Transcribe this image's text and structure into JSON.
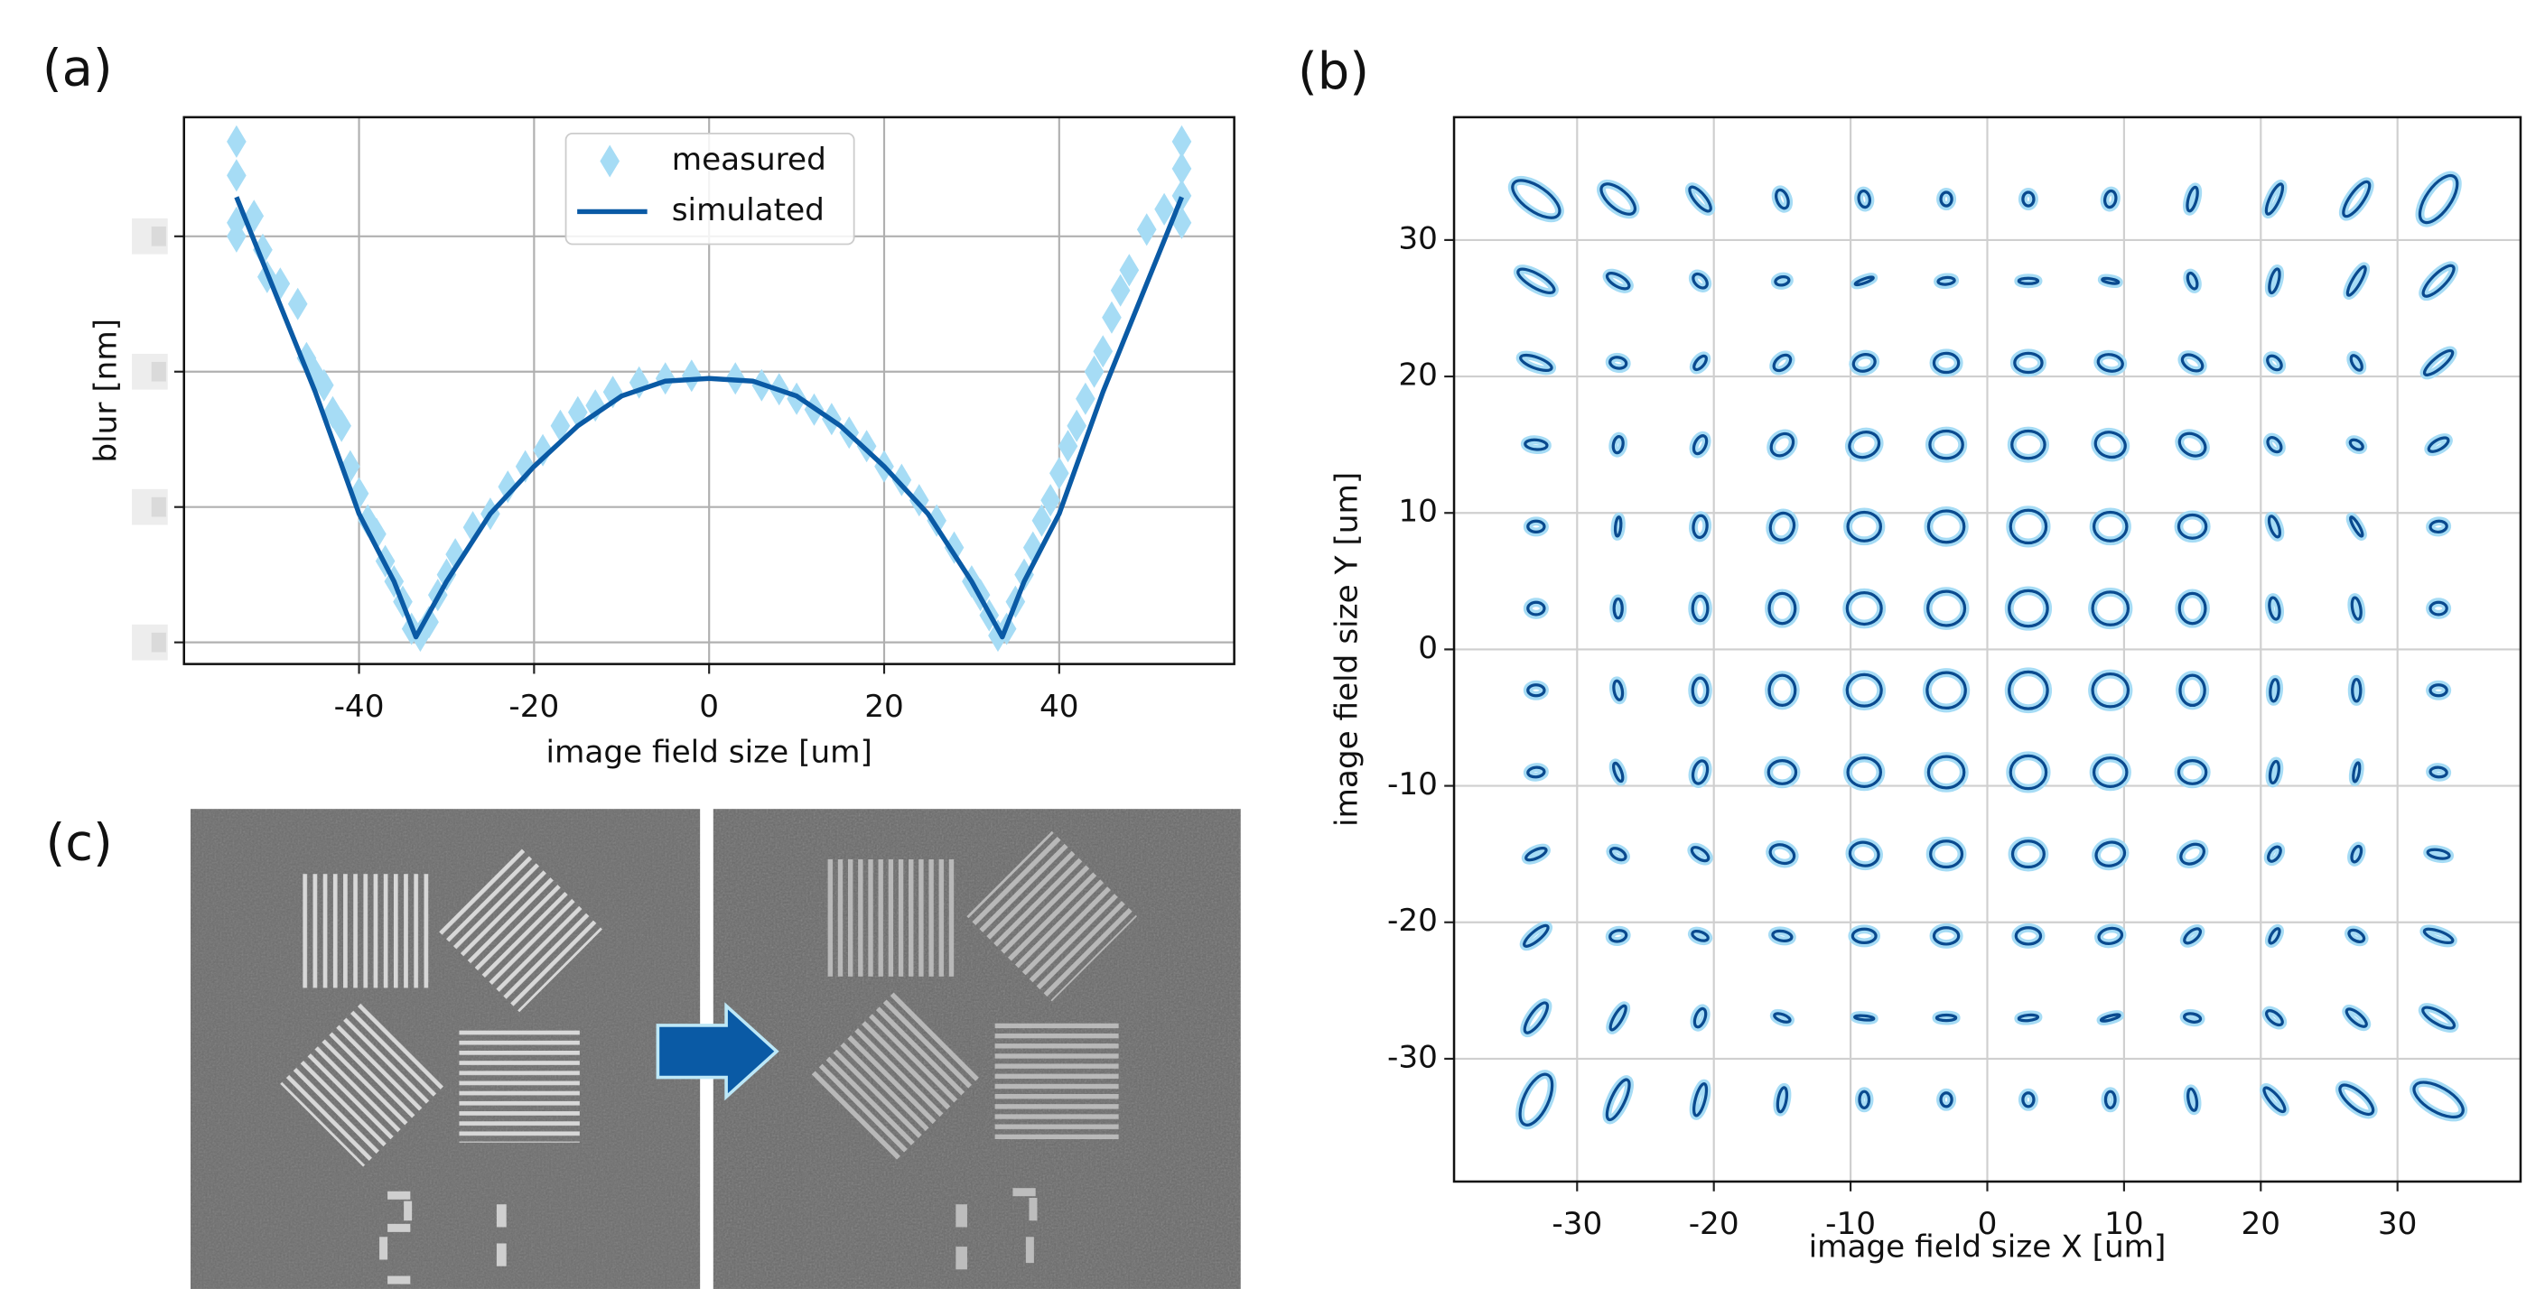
{
  "chart_data": [
    {
      "type": "line",
      "panel_label": "(a)",
      "xlabel": "image field size [um]",
      "ylabel": "blur [nm]",
      "xlim": [
        -60,
        60
      ],
      "ylim": [
        -0.16,
        3.88
      ],
      "xticks": [
        -40,
        -20,
        0,
        20,
        40
      ],
      "yticks": [
        0,
        1,
        2,
        3
      ],
      "ytick_labels_blurred": true,
      "grid": true,
      "legend": "upper center",
      "series": [
        {
          "name": "measured",
          "type": "scatter",
          "marker": "diamond",
          "color": "#a6dcf5",
          "x": [
            -54,
            -54,
            -54,
            -54,
            -52,
            -51,
            -50.5,
            -49,
            -47,
            -46,
            -45,
            -44,
            -43,
            -42,
            -41,
            -40,
            -39,
            -38,
            -37,
            -36,
            -35,
            -34,
            -33,
            -32,
            -31,
            -30,
            -29,
            -27,
            -25,
            -23,
            -21,
            -19,
            -17,
            -15,
            -13,
            -11,
            -8,
            -5,
            -2,
            3,
            6,
            8,
            10,
            12,
            14,
            16,
            18,
            20,
            22,
            24,
            26,
            28,
            30,
            31,
            32,
            33,
            34,
            35,
            36,
            37,
            38,
            39,
            40,
            41,
            42,
            43,
            44,
            45,
            46,
            47,
            48,
            50,
            52,
            54,
            54,
            54,
            54
          ],
          "values": [
            3.7,
            3.45,
            3.1,
            3.0,
            3.15,
            2.9,
            2.7,
            2.65,
            2.5,
            2.1,
            1.98,
            1.9,
            1.7,
            1.6,
            1.3,
            1.1,
            0.9,
            0.8,
            0.6,
            0.45,
            0.3,
            0.1,
            0.05,
            0.15,
            0.35,
            0.5,
            0.65,
            0.85,
            0.95,
            1.15,
            1.3,
            1.42,
            1.6,
            1.7,
            1.75,
            1.85,
            1.92,
            1.95,
            1.97,
            1.95,
            1.9,
            1.87,
            1.8,
            1.72,
            1.65,
            1.55,
            1.45,
            1.3,
            1.2,
            1.05,
            0.9,
            0.7,
            0.45,
            0.35,
            0.2,
            0.05,
            0.1,
            0.3,
            0.5,
            0.7,
            0.9,
            1.05,
            1.25,
            1.45,
            1.6,
            1.8,
            2.0,
            2.15,
            2.4,
            2.6,
            2.75,
            3.05,
            3.2,
            3.1,
            3.3,
            3.5,
            3.7
          ]
        },
        {
          "name": "simulated",
          "type": "line",
          "color": "#0a5aa5",
          "x": [
            -54,
            -50,
            -45,
            -40,
            -36,
            -33.5,
            -30,
            -25,
            -20,
            -15,
            -10,
            -5,
            0,
            5,
            10,
            15,
            20,
            25,
            30,
            33.5,
            36,
            40,
            45,
            50,
            54
          ],
          "values": [
            3.29,
            2.65,
            1.85,
            0.95,
            0.45,
            0.04,
            0.45,
            0.95,
            1.3,
            1.6,
            1.82,
            1.93,
            1.95,
            1.93,
            1.82,
            1.6,
            1.3,
            0.95,
            0.45,
            0.04,
            0.45,
            0.95,
            1.85,
            2.65,
            3.29
          ]
        }
      ]
    },
    {
      "type": "ellipse_field",
      "panel_label": "(b)",
      "xlabel": "image field size X [um]",
      "ylabel": "image field size Y [um]",
      "xlim": [
        -39,
        39
      ],
      "ylim": [
        -39,
        39
      ],
      "xticks": [
        -30,
        -20,
        -10,
        0,
        10,
        20,
        30
      ],
      "yticks": [
        -30,
        -20,
        -10,
        0,
        10,
        20,
        30
      ],
      "grid": true,
      "color": "#0a4a8f",
      "halo_color": "#a6dcf5",
      "ellipses": [
        [
          -33,
          33,
          2.0,
          0.9,
          -35
        ],
        [
          -27,
          33,
          1.5,
          0.7,
          -40
        ],
        [
          -21,
          33,
          1.1,
          0.4,
          -50
        ],
        [
          -15,
          33,
          0.7,
          0.4,
          -70
        ],
        [
          -9,
          33,
          0.6,
          0.4,
          -80
        ],
        [
          -3,
          33,
          0.5,
          0.4,
          90
        ],
        [
          3,
          33,
          0.5,
          0.4,
          90
        ],
        [
          9,
          33,
          0.6,
          0.4,
          80
        ],
        [
          15,
          33,
          0.9,
          0.3,
          75
        ],
        [
          21,
          33,
          1.2,
          0.35,
          65
        ],
        [
          27,
          33,
          1.5,
          0.5,
          55
        ],
        [
          33,
          33,
          2.0,
          0.9,
          55
        ],
        [
          -33,
          27,
          1.5,
          0.5,
          -30
        ],
        [
          -27,
          27,
          0.9,
          0.4,
          -30
        ],
        [
          -21,
          27,
          0.6,
          0.4,
          -45
        ],
        [
          -15,
          27,
          0.5,
          0.3,
          10
        ],
        [
          -9,
          27,
          0.7,
          0.15,
          20
        ],
        [
          -3,
          27,
          0.6,
          0.25,
          5
        ],
        [
          3,
          27,
          0.7,
          0.2,
          0
        ],
        [
          9,
          27,
          0.6,
          0.15,
          -10
        ],
        [
          15,
          27,
          0.6,
          0.3,
          -70
        ],
        [
          21,
          27,
          0.9,
          0.3,
          75
        ],
        [
          27,
          27,
          1.2,
          0.3,
          60
        ],
        [
          33,
          27,
          1.5,
          0.5,
          45
        ],
        [
          -33,
          21,
          1.2,
          0.4,
          -20
        ],
        [
          -27,
          21,
          0.6,
          0.4,
          -10
        ],
        [
          -21,
          21,
          0.6,
          0.3,
          50
        ],
        [
          -15,
          21,
          0.7,
          0.45,
          40
        ],
        [
          -9,
          21,
          0.8,
          0.6,
          15
        ],
        [
          -3,
          21,
          0.9,
          0.7,
          0
        ],
        [
          3,
          21,
          1.0,
          0.7,
          0
        ],
        [
          9,
          21,
          0.9,
          0.6,
          -10
        ],
        [
          15,
          21,
          0.8,
          0.5,
          -30
        ],
        [
          21,
          21,
          0.6,
          0.4,
          -45
        ],
        [
          27,
          21,
          0.6,
          0.3,
          -60
        ],
        [
          33,
          21,
          1.3,
          0.4,
          40
        ],
        [
          -33,
          15,
          0.8,
          0.35,
          -5
        ],
        [
          -27,
          15,
          0.6,
          0.35,
          80
        ],
        [
          -21,
          15,
          0.7,
          0.4,
          65
        ],
        [
          -15,
          15,
          0.9,
          0.7,
          45
        ],
        [
          -9,
          15,
          1.1,
          0.9,
          20
        ],
        [
          -3,
          15,
          1.2,
          1.0,
          0
        ],
        [
          3,
          15,
          1.2,
          1.0,
          0
        ],
        [
          9,
          15,
          1.1,
          0.9,
          -15
        ],
        [
          15,
          15,
          1.0,
          0.75,
          -30
        ],
        [
          21,
          15,
          0.6,
          0.4,
          -50
        ],
        [
          27,
          15,
          0.5,
          0.3,
          -30
        ],
        [
          33,
          15,
          0.8,
          0.35,
          30
        ],
        [
          -33,
          9,
          0.6,
          0.4,
          0
        ],
        [
          -27,
          9,
          0.7,
          0.2,
          85
        ],
        [
          -21,
          9,
          0.8,
          0.5,
          85
        ],
        [
          -15,
          9,
          1.0,
          0.85,
          70
        ],
        [
          -9,
          9,
          1.2,
          1.05,
          0
        ],
        [
          -3,
          9,
          1.3,
          1.15,
          0
        ],
        [
          3,
          9,
          1.3,
          1.2,
          0
        ],
        [
          9,
          9,
          1.2,
          1.05,
          0
        ],
        [
          15,
          9,
          1.0,
          0.85,
          0
        ],
        [
          21,
          9,
          0.8,
          0.3,
          -70
        ],
        [
          27,
          9,
          0.8,
          0.2,
          -60
        ],
        [
          33,
          9,
          0.6,
          0.4,
          5
        ],
        [
          -33,
          3,
          0.6,
          0.45,
          0
        ],
        [
          -27,
          3,
          0.7,
          0.3,
          90
        ],
        [
          -21,
          3,
          0.9,
          0.55,
          90
        ],
        [
          -15,
          3,
          1.1,
          0.95,
          90
        ],
        [
          -9,
          3,
          1.25,
          1.15,
          0
        ],
        [
          -3,
          3,
          1.35,
          1.25,
          0
        ],
        [
          3,
          3,
          1.4,
          1.3,
          0
        ],
        [
          9,
          3,
          1.3,
          1.2,
          0
        ],
        [
          15,
          3,
          1.1,
          0.95,
          90
        ],
        [
          21,
          3,
          0.8,
          0.35,
          -80
        ],
        [
          27,
          3,
          0.8,
          0.3,
          -80
        ],
        [
          33,
          3,
          0.6,
          0.45,
          0
        ],
        [
          -33,
          -3,
          0.6,
          0.4,
          0
        ],
        [
          -27,
          -3,
          0.7,
          0.3,
          -80
        ],
        [
          -21,
          -3,
          0.9,
          0.55,
          90
        ],
        [
          -15,
          -3,
          1.1,
          0.95,
          90
        ],
        [
          -9,
          -3,
          1.25,
          1.15,
          0
        ],
        [
          -3,
          -3,
          1.4,
          1.3,
          0
        ],
        [
          3,
          -3,
          1.4,
          1.35,
          0
        ],
        [
          9,
          -3,
          1.3,
          1.2,
          0
        ],
        [
          15,
          -3,
          1.1,
          0.9,
          90
        ],
        [
          21,
          -3,
          0.8,
          0.3,
          85
        ],
        [
          27,
          -3,
          0.8,
          0.3,
          90
        ],
        [
          33,
          -3,
          0.6,
          0.4,
          0
        ],
        [
          -33,
          -9,
          0.6,
          0.35,
          5
        ],
        [
          -27,
          -9,
          0.7,
          0.25,
          -70
        ],
        [
          -21,
          -9,
          0.85,
          0.5,
          75
        ],
        [
          -15,
          -9,
          1.0,
          0.85,
          0
        ],
        [
          -9,
          -9,
          1.2,
          1.05,
          0
        ],
        [
          -3,
          -9,
          1.3,
          1.15,
          0
        ],
        [
          3,
          -9,
          1.3,
          1.2,
          0
        ],
        [
          9,
          -9,
          1.2,
          1.05,
          0
        ],
        [
          15,
          -9,
          1.0,
          0.85,
          0
        ],
        [
          21,
          -9,
          0.8,
          0.3,
          80
        ],
        [
          27,
          -9,
          0.7,
          0.2,
          80
        ],
        [
          33,
          -9,
          0.6,
          0.35,
          -5
        ],
        [
          -33,
          -15,
          0.8,
          0.3,
          25
        ],
        [
          -27,
          -15,
          0.6,
          0.35,
          -30
        ],
        [
          -21,
          -15,
          0.7,
          0.35,
          -35
        ],
        [
          -15,
          -15,
          0.9,
          0.65,
          -20
        ],
        [
          -9,
          -15,
          1.05,
          0.85,
          -10
        ],
        [
          -3,
          -15,
          1.15,
          0.95,
          0
        ],
        [
          3,
          -15,
          1.15,
          0.95,
          0
        ],
        [
          9,
          -15,
          1.05,
          0.85,
          15
        ],
        [
          15,
          -15,
          0.9,
          0.65,
          30
        ],
        [
          21,
          -15,
          0.6,
          0.35,
          55
        ],
        [
          27,
          -15,
          0.6,
          0.3,
          70
        ],
        [
          33,
          -15,
          0.8,
          0.3,
          -10
        ],
        [
          -33,
          -21,
          1.1,
          0.35,
          40
        ],
        [
          -27,
          -21,
          0.6,
          0.4,
          10
        ],
        [
          -21,
          -21,
          0.6,
          0.3,
          -20
        ],
        [
          -15,
          -21,
          0.7,
          0.35,
          -10
        ],
        [
          -9,
          -21,
          0.85,
          0.5,
          0
        ],
        [
          -3,
          -21,
          0.9,
          0.6,
          0
        ],
        [
          3,
          -21,
          0.9,
          0.6,
          0
        ],
        [
          9,
          -21,
          0.85,
          0.55,
          10
        ],
        [
          15,
          -21,
          0.7,
          0.35,
          40
        ],
        [
          21,
          -21,
          0.6,
          0.25,
          60
        ],
        [
          27,
          -21,
          0.6,
          0.35,
          -30
        ],
        [
          33,
          -21,
          1.1,
          0.35,
          -20
        ],
        [
          -33,
          -27,
          1.3,
          0.45,
          55
        ],
        [
          -27,
          -27,
          1.0,
          0.3,
          60
        ],
        [
          -21,
          -27,
          0.7,
          0.35,
          70
        ],
        [
          -15,
          -27,
          0.6,
          0.25,
          -20
        ],
        [
          -9,
          -27,
          0.7,
          0.15,
          -5
        ],
        [
          -3,
          -27,
          0.7,
          0.2,
          0
        ],
        [
          3,
          -27,
          0.7,
          0.2,
          5
        ],
        [
          9,
          -27,
          0.7,
          0.15,
          15
        ],
        [
          15,
          -27,
          0.6,
          0.3,
          -10
        ],
        [
          21,
          -27,
          0.7,
          0.35,
          -40
        ],
        [
          27,
          -27,
          0.9,
          0.35,
          -40
        ],
        [
          33,
          -27,
          1.3,
          0.45,
          -30
        ],
        [
          -33,
          -33,
          2.0,
          0.9,
          65
        ],
        [
          -27,
          -33,
          1.6,
          0.5,
          65
        ],
        [
          -21,
          -33,
          1.2,
          0.35,
          75
        ],
        [
          -15,
          -33,
          0.9,
          0.3,
          80
        ],
        [
          -9,
          -33,
          0.6,
          0.35,
          90
        ],
        [
          -3,
          -33,
          0.5,
          0.4,
          90
        ],
        [
          3,
          -33,
          0.5,
          0.4,
          90
        ],
        [
          9,
          -33,
          0.6,
          0.35,
          90
        ],
        [
          15,
          -33,
          0.8,
          0.3,
          -80
        ],
        [
          21,
          -33,
          1.1,
          0.35,
          -50
        ],
        [
          27,
          -33,
          1.5,
          0.6,
          -40
        ],
        [
          33,
          -33,
          2.0,
          0.9,
          -30
        ]
      ]
    }
  ],
  "image_panel": {
    "panel_label": "(c)"
  }
}
